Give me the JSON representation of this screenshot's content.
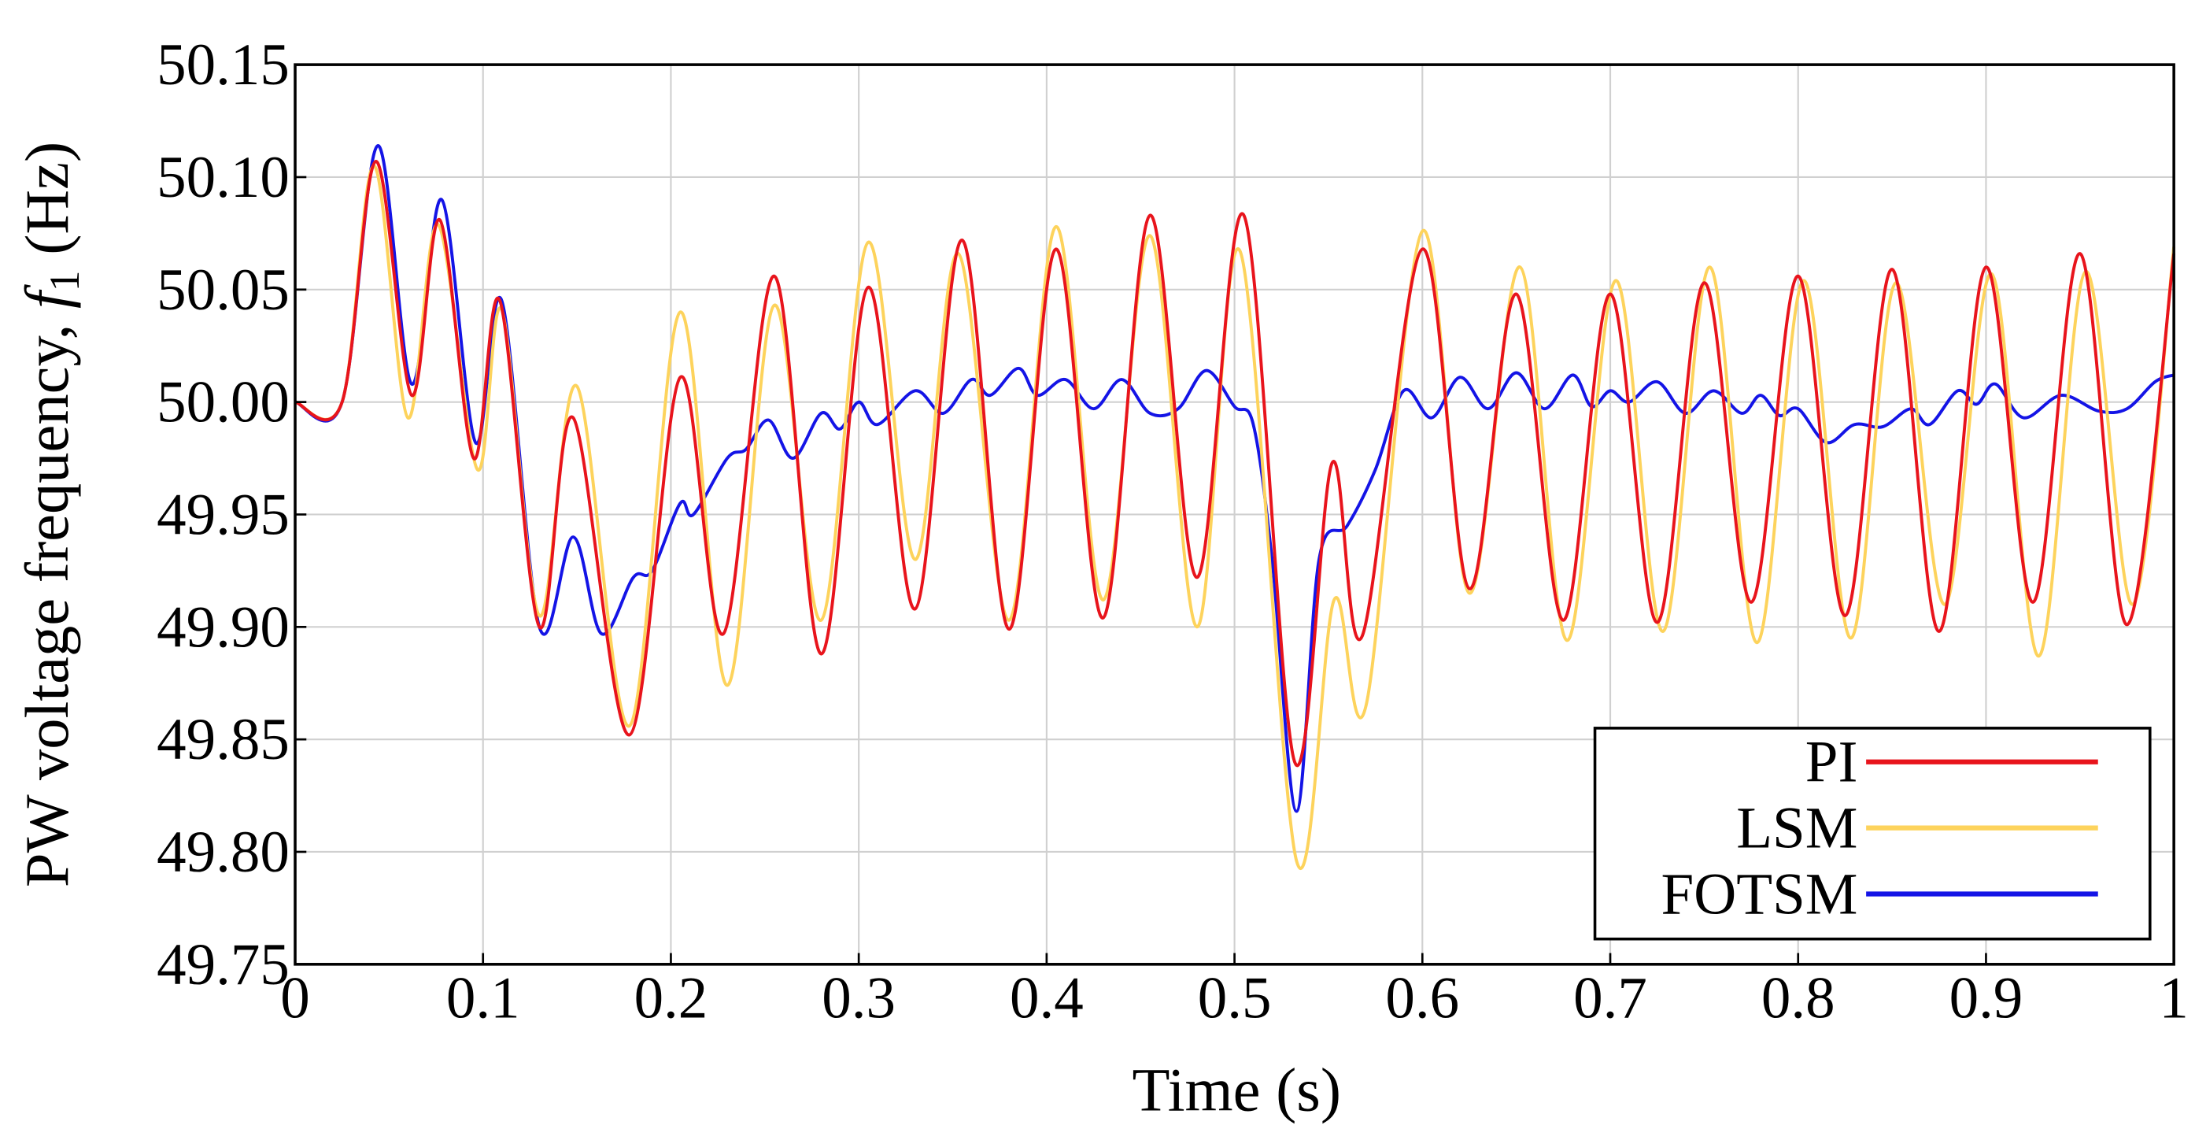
{
  "chart_data": {
    "type": "line",
    "xlabel": "Time (s)",
    "ylabel": [
      "PW voltage frequency, ",
      "f",
      "1",
      " (Hz)"
    ],
    "xlim": [
      0,
      1
    ],
    "ylim": [
      49.75,
      50.15
    ],
    "xticks": [
      0,
      0.1,
      0.2,
      0.3,
      0.4,
      0.5,
      0.6,
      0.7,
      0.8,
      0.9,
      1
    ],
    "yticks": [
      {
        "value": 49.75,
        "label": "49.75"
      },
      {
        "value": 49.8,
        "label": "49.80"
      },
      {
        "value": 49.85,
        "label": "49.85"
      },
      {
        "value": 49.9,
        "label": "49.90"
      },
      {
        "value": 49.95,
        "label": "49.95"
      },
      {
        "value": 50,
        "label": "50.00"
      },
      {
        "value": 50.05,
        "label": "50.05"
      },
      {
        "value": 50.1,
        "label": "50.10"
      },
      {
        "value": 50.15,
        "label": "50.15"
      }
    ],
    "grid": true,
    "legend": "lower right",
    "series": [
      {
        "name": "PI",
        "color": "#e8141c",
        "x": [
          0,
          0.025,
          0.043,
          0.062,
          0.077,
          0.095,
          0.109,
          0.13,
          0.148,
          0.178,
          0.205,
          0.228,
          0.255,
          0.28,
          0.305,
          0.33,
          0.355,
          0.38,
          0.405,
          0.43,
          0.455,
          0.48,
          0.505,
          0.532,
          0.552,
          0.568,
          0.6,
          0.625,
          0.65,
          0.675,
          0.7,
          0.725,
          0.75,
          0.775,
          0.8,
          0.825,
          0.85,
          0.875,
          0.9,
          0.925,
          0.95,
          0.975,
          1
        ],
        "values": [
          50,
          50,
          50.107,
          50.003,
          50.081,
          49.975,
          50.045,
          49.9,
          49.993,
          49.852,
          50.011,
          49.897,
          50.056,
          49.888,
          50.051,
          49.908,
          50.072,
          49.899,
          50.068,
          49.904,
          50.083,
          49.922,
          50.083,
          49.84,
          49.973,
          49.896,
          50.068,
          49.917,
          50.048,
          49.903,
          50.048,
          49.902,
          50.053,
          49.911,
          50.056,
          49.905,
          50.059,
          49.898,
          50.06,
          49.911,
          50.066,
          49.901,
          50.066
        ]
      },
      {
        "name": "LSM",
        "color": "#fdd35c",
        "x": [
          0,
          0.025,
          0.042,
          0.06,
          0.076,
          0.097,
          0.11,
          0.13,
          0.15,
          0.178,
          0.205,
          0.23,
          0.255,
          0.28,
          0.305,
          0.33,
          0.353,
          0.38,
          0.405,
          0.43,
          0.455,
          0.48,
          0.503,
          0.533,
          0.553,
          0.57,
          0.6,
          0.625,
          0.652,
          0.677,
          0.703,
          0.728,
          0.753,
          0.778,
          0.803,
          0.828,
          0.852,
          0.878,
          0.903,
          0.928,
          0.953,
          0.978,
          1
        ],
        "values": [
          50,
          50,
          50.105,
          49.993,
          50.079,
          49.97,
          50.041,
          49.905,
          50.007,
          49.856,
          50.04,
          49.874,
          50.043,
          49.903,
          50.071,
          49.93,
          50.066,
          49.903,
          50.078,
          49.912,
          50.074,
          49.9,
          50.067,
          49.796,
          49.912,
          49.865,
          50.076,
          49.915,
          50.06,
          49.894,
          50.054,
          49.898,
          50.06,
          49.893,
          50.054,
          49.895,
          50.053,
          49.91,
          50.057,
          49.887,
          50.058,
          49.91,
          50.069
        ]
      },
      {
        "name": "FOTSM",
        "color": "#1414e6",
        "x": [
          0,
          0.025,
          0.044,
          0.062,
          0.078,
          0.096,
          0.11,
          0.13,
          0.148,
          0.163,
          0.18,
          0.19,
          0.205,
          0.212,
          0.23,
          0.24,
          0.252,
          0.265,
          0.28,
          0.29,
          0.3,
          0.31,
          0.33,
          0.345,
          0.36,
          0.37,
          0.385,
          0.395,
          0.41,
          0.425,
          0.44,
          0.455,
          0.47,
          0.485,
          0.5,
          0.51,
          0.52,
          0.533,
          0.545,
          0.56,
          0.575,
          0.59,
          0.605,
          0.62,
          0.635,
          0.65,
          0.665,
          0.68,
          0.69,
          0.7,
          0.71,
          0.725,
          0.74,
          0.755,
          0.77,
          0.78,
          0.79,
          0.8,
          0.815,
          0.83,
          0.845,
          0.86,
          0.87,
          0.885,
          0.895,
          0.905,
          0.92,
          0.94,
          0.96,
          0.975,
          0.99,
          1
        ],
        "values": [
          50,
          50,
          50.114,
          50.008,
          50.09,
          49.982,
          50.045,
          49.9,
          49.94,
          49.897,
          49.922,
          49.925,
          49.955,
          49.95,
          49.975,
          49.979,
          49.992,
          49.975,
          49.995,
          49.988,
          50,
          49.99,
          50.005,
          49.995,
          50.01,
          50.003,
          50.015,
          50.003,
          50.01,
          49.997,
          50.01,
          49.995,
          49.997,
          50.014,
          49.998,
          49.99,
          49.93,
          49.818,
          49.93,
          49.945,
          49.97,
          50.005,
          49.993,
          50.011,
          49.997,
          50.013,
          49.997,
          50.012,
          49.998,
          50.005,
          50,
          50.009,
          49.995,
          50.005,
          49.995,
          50.003,
          49.994,
          49.997,
          49.982,
          49.99,
          49.989,
          49.997,
          49.99,
          50.005,
          49.999,
          50.008,
          49.993,
          50.003,
          49.996,
          49.997,
          50.009,
          50.012
        ]
      }
    ]
  }
}
